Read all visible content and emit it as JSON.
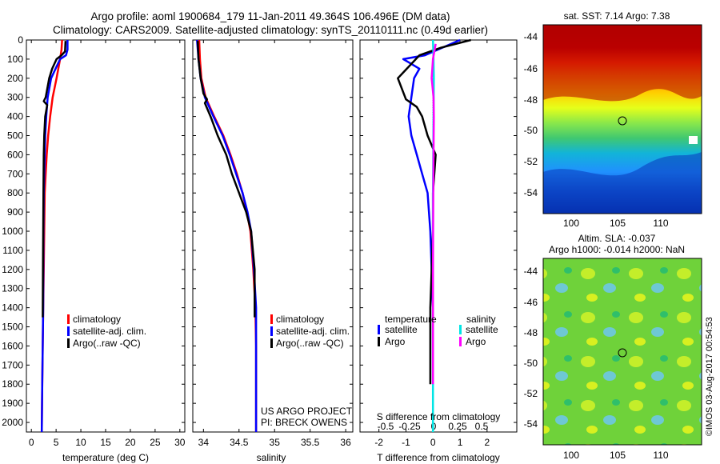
{
  "header": {
    "line1": "Argo profile: aoml 1900684_179 11-Jan-2011 49.364S 106.496E (DM data)",
    "line2": "Climatology: CARS2009. Satellite-adjusted climatology: synTS_20110111.nc (0.49d earlier)"
  },
  "colors": {
    "climatology": "#ff0000",
    "satellite": "#0000ff",
    "argo": "#000000",
    "argo_salinity_diff": "#ff00ff",
    "satellite_salinity_diff": "#00e5e5"
  },
  "pressure_ticks": [
    "0",
    "100",
    "200",
    "300",
    "400",
    "500",
    "600",
    "700",
    "800",
    "900",
    "1000",
    "1100",
    "1200",
    "1300",
    "1400",
    "1500",
    "1600",
    "1700",
    "1800",
    "1900",
    "2000"
  ],
  "chart_data": [
    {
      "type": "line",
      "panel": "temperature",
      "xlabel": "temperature (deg C)",
      "xlim": [
        -1,
        31
      ],
      "ylim": [
        2050,
        0
      ],
      "y_reversed": true,
      "xticks": [
        "0",
        "5",
        "10",
        "15",
        "20",
        "25",
        "30"
      ],
      "xtick_values": [
        0,
        5,
        10,
        15,
        20,
        25,
        30
      ],
      "legend": [
        "climatology",
        "satellite-adj. clim.",
        "Argo(..raw -QC)"
      ],
      "series": [
        {
          "name": "climatology",
          "color": "#ff0000",
          "x": [
            6.2,
            6.1,
            5.8,
            5.1,
            4.3,
            3.8,
            3.4,
            3.1,
            2.9,
            2.7,
            2.6,
            2.5,
            2.4,
            2.3,
            2.2,
            2.1
          ],
          "y": [
            0,
            50,
            100,
            200,
            300,
            400,
            500,
            600,
            700,
            800,
            1000,
            1200,
            1400,
            1600,
            1800,
            2050
          ]
        },
        {
          "name": "satellite-adj. clim.",
          "color": "#0000ff",
          "x": [
            7.3,
            7.3,
            7.0,
            5.8,
            4.0,
            3.3,
            3.0,
            2.8,
            2.7,
            2.6,
            2.5,
            2.45,
            2.4,
            2.3,
            2.2,
            2.1
          ],
          "y": [
            0,
            50,
            80,
            100,
            200,
            300,
            400,
            500,
            600,
            700,
            800,
            1000,
            1400,
            1600,
            1800,
            2050
          ]
        },
        {
          "name": "Argo(..raw -QC)",
          "color": "#000000",
          "x": [
            6.9,
            6.8,
            6.1,
            5.1,
            4.2,
            3.6,
            2.9,
            2.5,
            3.2,
            2.8,
            2.6,
            2.5,
            2.45,
            2.4,
            2.35,
            2.3
          ],
          "y": [
            5,
            60,
            80,
            100,
            150,
            200,
            300,
            320,
            340,
            400,
            500,
            600,
            800,
            1000,
            1200,
            1450
          ]
        }
      ]
    },
    {
      "type": "line",
      "panel": "salinity",
      "xlabel": "salinity",
      "xlim": [
        33.85,
        36.1
      ],
      "ylim": [
        2050,
        0
      ],
      "y_reversed": true,
      "xticks": [
        "34",
        "34.5",
        "35",
        "35.5",
        "36"
      ],
      "xtick_values": [
        34,
        34.5,
        35,
        35.5,
        36
      ],
      "legend": [
        "climatology",
        "satellite-adj. clim.",
        "Argo(..raw -QC)"
      ],
      "footer": [
        "US ARGO PROJECT",
        "PI: BRECK OWENS"
      ],
      "series": [
        {
          "name": "climatology",
          "color": "#ff0000",
          "x": [
            33.94,
            33.95,
            33.97,
            34.03,
            34.15,
            34.28,
            34.38,
            34.47,
            34.55,
            34.61,
            34.66,
            34.7,
            34.73,
            34.74,
            34.74
          ],
          "y": [
            0,
            100,
            200,
            300,
            400,
            500,
            600,
            700,
            800,
            900,
            1000,
            1200,
            1400,
            1600,
            2050
          ]
        },
        {
          "name": "satellite-adj. clim.",
          "color": "#0000ff",
          "x": [
            33.91,
            33.93,
            33.96,
            34.02,
            34.14,
            34.27,
            34.37,
            34.46,
            34.55,
            34.62,
            34.67,
            34.71,
            34.74,
            34.74,
            34.74
          ],
          "y": [
            0,
            100,
            200,
            300,
            400,
            500,
            600,
            700,
            800,
            900,
            1000,
            1200,
            1400,
            1600,
            2050
          ]
        },
        {
          "name": "Argo(..raw -QC)",
          "color": "#000000",
          "x": [
            33.92,
            33.93,
            33.96,
            34.0,
            34.05,
            34.02,
            34.1,
            34.2,
            34.32,
            34.4,
            34.5,
            34.6,
            34.67,
            34.72,
            34.72
          ],
          "y": [
            5,
            100,
            200,
            280,
            310,
            330,
            400,
            500,
            600,
            700,
            800,
            900,
            1000,
            1200,
            1450
          ]
        }
      ]
    },
    {
      "type": "line",
      "panel": "difference",
      "xlabel": "T difference from climatology",
      "xlabel_top": "S difference from climatology",
      "xlim": [
        -2.7,
        3.1
      ],
      "ylim": [
        2050,
        0
      ],
      "y_reversed": true,
      "xticks": [
        "-2",
        "-1",
        "0",
        "1",
        "2"
      ],
      "xtick_values": [
        -2,
        -1,
        0,
        1,
        2
      ],
      "sticks": [
        "-0.5",
        "-0.25",
        "0",
        "0.25",
        "0.5"
      ],
      "legend_headers": [
        "temperature",
        "salinity"
      ],
      "legend": [
        "satellite",
        "Argo",
        "satellite",
        "Argo"
      ],
      "series": [
        {
          "name": "satellite",
          "color": "#0000ff",
          "x": [
            1.0,
            -0.3,
            -1.1,
            -0.5,
            -0.7,
            -0.8,
            -0.9,
            -0.8,
            -0.6,
            -0.4,
            -0.2,
            -0.1,
            0.0,
            0.0
          ],
          "y": [
            0,
            80,
            100,
            150,
            200,
            300,
            400,
            500,
            600,
            700,
            800,
            1000,
            1400,
            1800
          ]
        },
        {
          "name": "Argo",
          "color": "#000000",
          "x": [
            1.4,
            0.3,
            -0.5,
            -1.3,
            -1.0,
            -0.6,
            -0.4,
            -0.2,
            0.1,
            0.05,
            0.0,
            0.0,
            -0.1,
            -0.1
          ],
          "y": [
            0,
            40,
            80,
            200,
            310,
            350,
            400,
            500,
            600,
            700,
            800,
            1000,
            1400,
            1800
          ]
        },
        {
          "name": "satellite",
          "color": "#00e5e5",
          "x": [
            0.0,
            0.02,
            0.03,
            0.02,
            0.0,
            0.0,
            0.0,
            0.0
          ],
          "y": [
            0,
            100,
            200,
            400,
            800,
            1200,
            1600,
            2050
          ]
        },
        {
          "name": "Argo",
          "color": "#ff00ff",
          "x": [
            0.1,
            0.0,
            -0.05,
            0.02,
            0.03,
            0.02,
            0.01,
            0.0,
            0.0
          ],
          "y": [
            20,
            100,
            200,
            300,
            400,
            600,
            800,
            1200,
            1800
          ]
        }
      ]
    }
  ],
  "maps": {
    "top": {
      "title": "sat. SST: 7.14  Argo: 7.38",
      "yticks": [
        "-44",
        "-46",
        "-48",
        "-50",
        "-52",
        "-54"
      ],
      "xticks": [
        "100",
        "105",
        "110"
      ]
    },
    "bottom": {
      "title_line1": "Altim. SLA: -0.037",
      "title_line2": "Argo h1000: -0.014 h2000: NaN",
      "yticks": [
        "-44",
        "-46",
        "-48",
        "-50",
        "-52",
        "-54"
      ],
      "xticks": [
        "100",
        "105",
        "110"
      ]
    }
  },
  "watermark": "©IMOS 03-Aug-2017 00:54:53"
}
